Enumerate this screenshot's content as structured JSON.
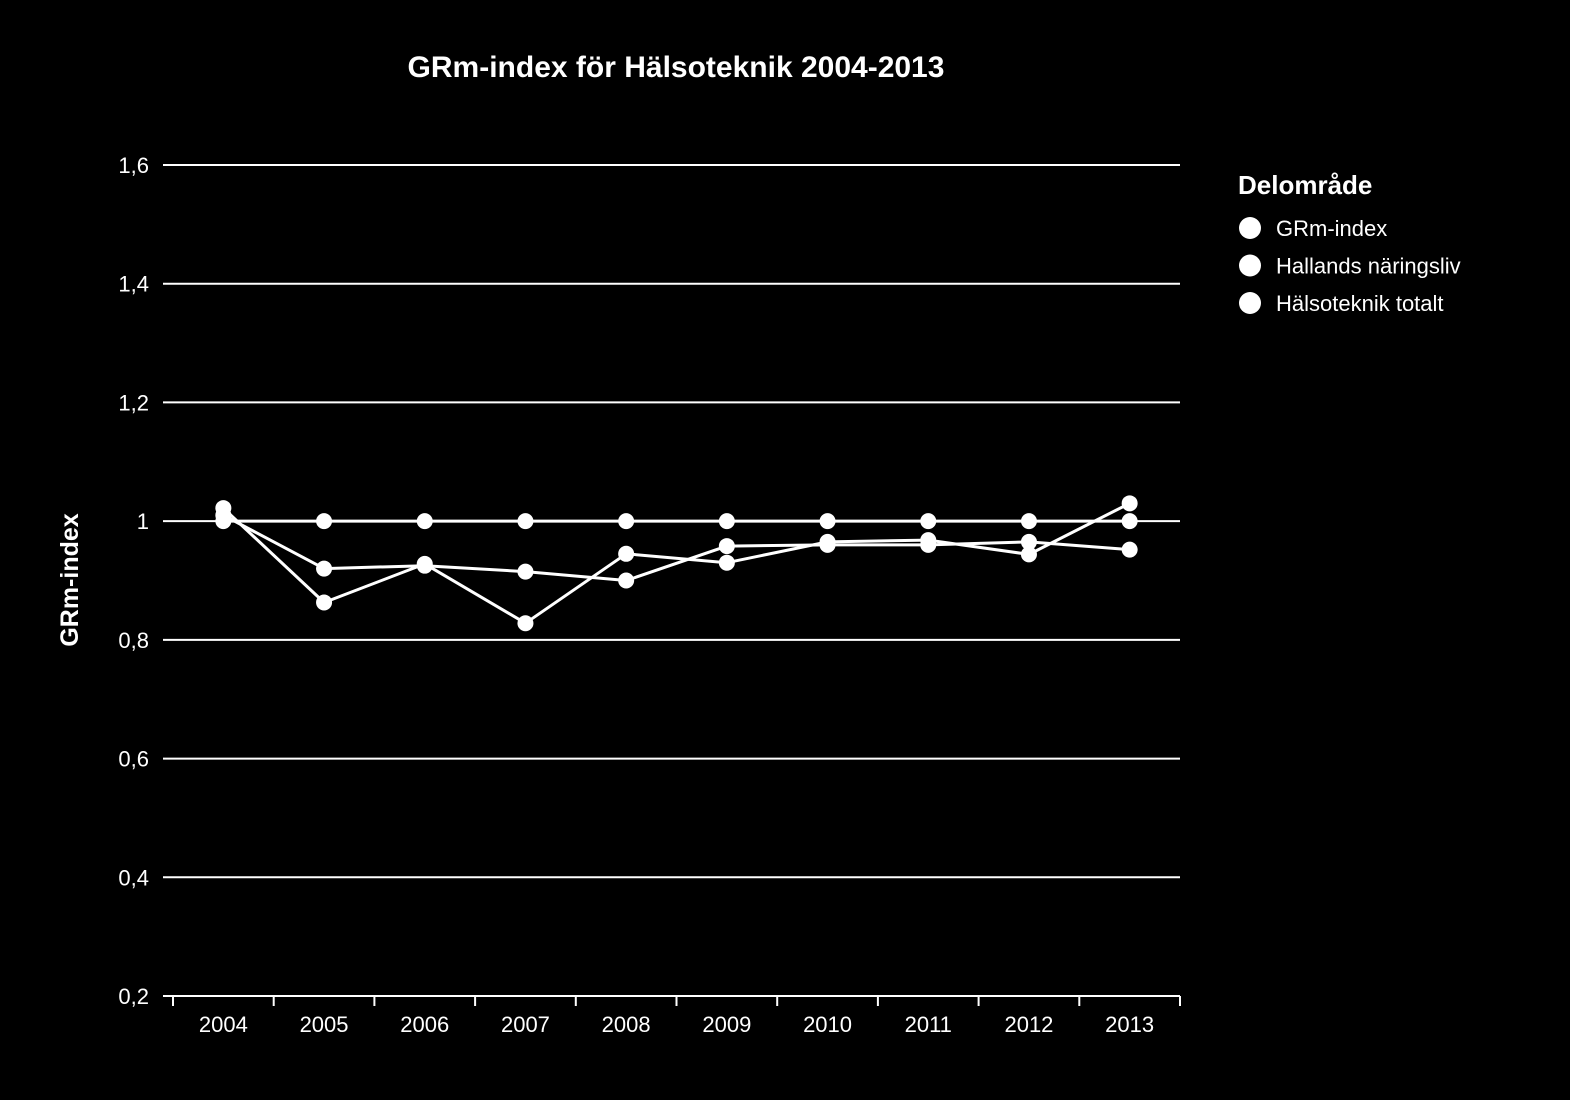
{
  "chart_data": {
    "type": "line",
    "title": "GRm-index för Hälsoteknik 2004-2013",
    "xlabel": "",
    "ylabel": "GRm-index",
    "categories": [
      "2004",
      "2005",
      "2006",
      "2007",
      "2008",
      "2009",
      "2010",
      "2011",
      "2012",
      "2013"
    ],
    "ylim": [
      0.2,
      1.6
    ],
    "yticks": [
      0.2,
      0.4,
      0.6,
      0.8,
      1.0,
      1.2,
      1.4,
      1.6
    ],
    "ytick_labels": [
      "0,2",
      "0,4",
      "0,6",
      "0,8",
      "1",
      "1,2",
      "1,4",
      "1,6"
    ],
    "grid": true,
    "legend": {
      "title": "Delområde",
      "position": "right"
    },
    "series": [
      {
        "name": "GRm-index",
        "color": "#ffffff",
        "values": [
          1.0,
          1.0,
          1.0,
          1.0,
          1.0,
          1.0,
          1.0,
          1.0,
          1.0,
          1.0
        ]
      },
      {
        "name": "Hallands näringsliv",
        "color": "#ffffff",
        "values": [
          1.01,
          0.92,
          0.925,
          0.915,
          0.9,
          0.958,
          0.96,
          0.96,
          0.965,
          0.952
        ]
      },
      {
        "name": "Hälsoteknik totalt",
        "color": "#ffffff",
        "values": [
          1.022,
          0.863,
          0.928,
          0.828,
          0.945,
          0.93,
          0.965,
          0.968,
          0.944,
          1.03
        ]
      }
    ]
  }
}
